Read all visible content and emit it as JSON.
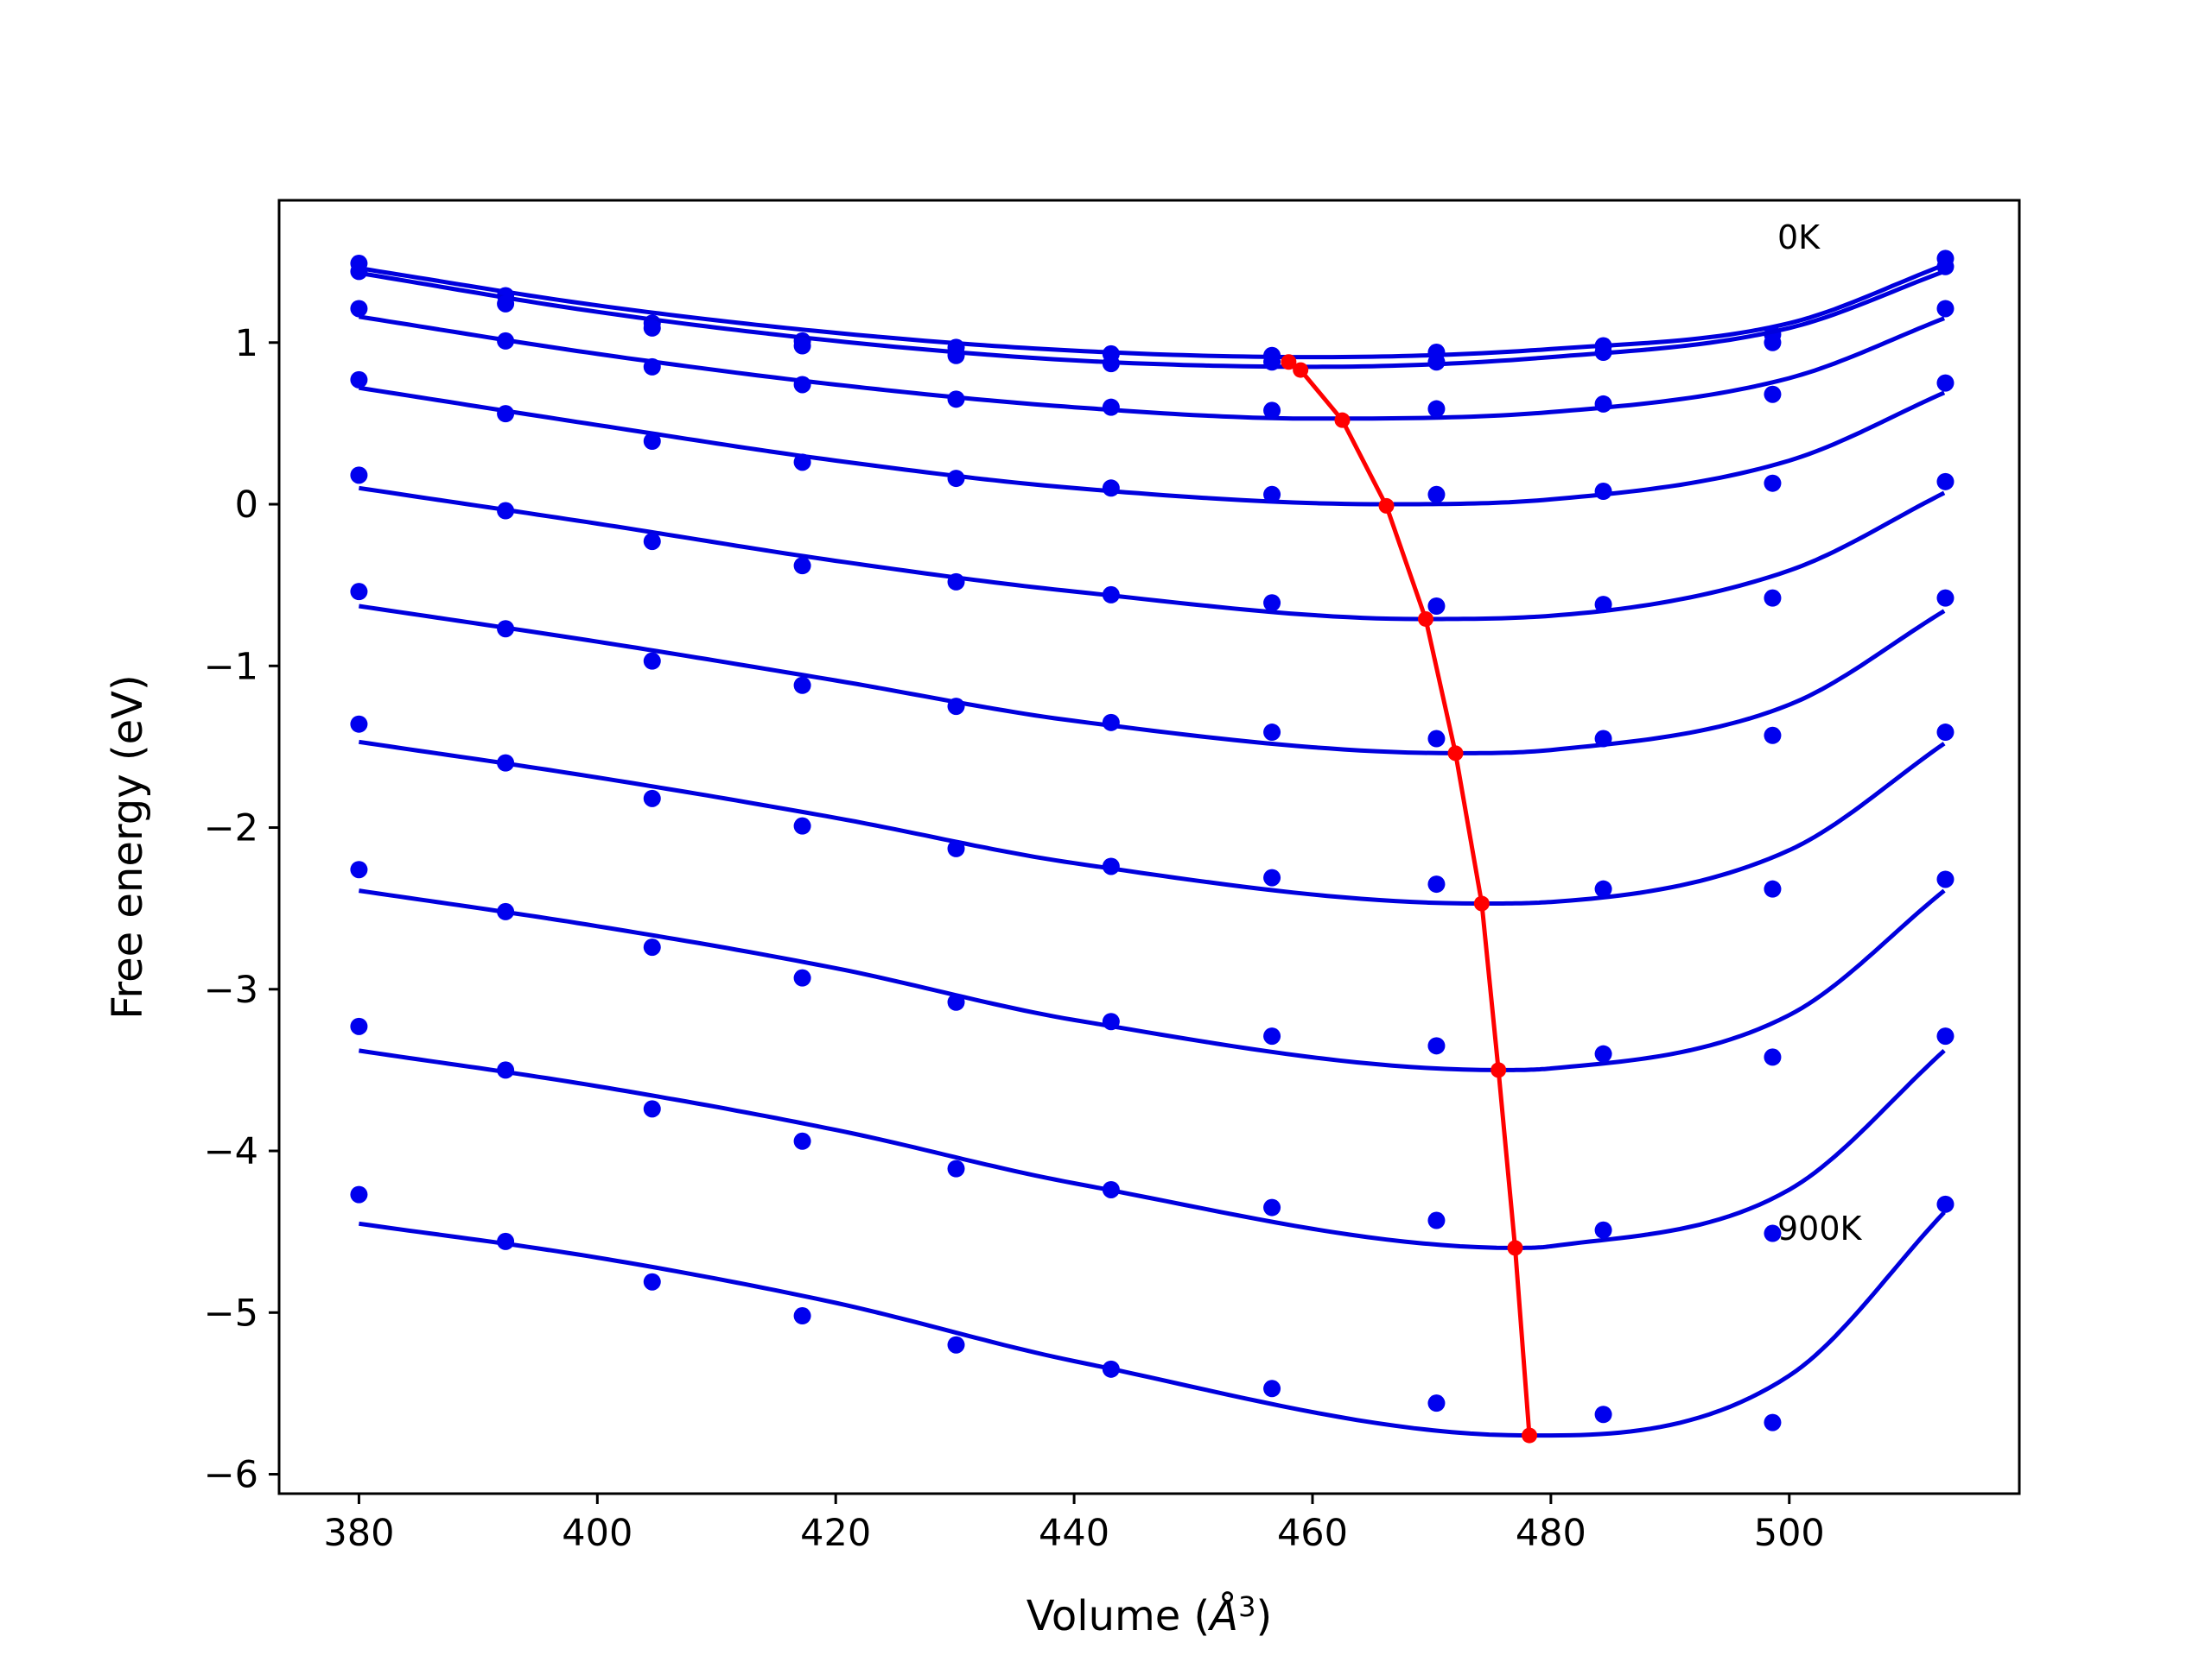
{
  "chart_data": {
    "type": "line",
    "title": "",
    "xlabel": "Volume (",
    "xlabel_symbol": "Å",
    "xlabel_power": "3",
    "xlabel_close": ")",
    "ylabel": "Free energy (eV)",
    "xlim": [
      373.3,
      519.3
    ],
    "ylim": [
      -6.12,
      1.88
    ],
    "xticks": [
      380,
      400,
      420,
      440,
      460,
      480,
      500
    ],
    "xtick_labels": [
      "380",
      "400",
      "420",
      "440",
      "460",
      "480",
      "500"
    ],
    "yticks": [
      1,
      0,
      -1,
      -2,
      -3,
      -4,
      -5,
      -6
    ],
    "ytick_labels": [
      "1",
      "0",
      "−1",
      "−2",
      "−3",
      "−4",
      "−5",
      "−6"
    ],
    "grid": false,
    "annotations": [
      {
        "text": "0K",
        "x": 499,
        "y": 1.58
      },
      {
        "text": "900K",
        "x": 499,
        "y": -4.55
      }
    ],
    "x": [
      380.0,
      392.3,
      404.6,
      417.2,
      430.1,
      443.1,
      456.6,
      470.4,
      484.4,
      498.6,
      513.1
    ],
    "series": [
      {
        "values": [
          1.49,
          1.29,
          1.12,
          1.01,
          0.97,
          0.93,
          0.92,
          0.94,
          0.98,
          1.05,
          1.52
        ],
        "fit": [
          [
            380,
            1.46
          ],
          [
            400,
            1.23
          ],
          [
            420,
            1.06
          ],
          [
            440,
            0.95
          ],
          [
            460,
            0.91
          ],
          [
            480,
            0.96
          ],
          [
            500,
            1.12
          ],
          [
            513,
            1.48
          ]
        ]
      },
      {
        "values": [
          1.44,
          1.24,
          1.09,
          0.98,
          0.92,
          0.87,
          0.88,
          0.88,
          0.94,
          1.0,
          1.47
        ],
        "fit": [
          [
            380,
            1.43
          ],
          [
            400,
            1.19
          ],
          [
            420,
            1.01
          ],
          [
            440,
            0.89
          ],
          [
            460,
            0.85
          ],
          [
            480,
            0.91
          ],
          [
            500,
            1.09
          ],
          [
            513,
            1.44
          ]
        ]
      },
      {
        "values": [
          1.21,
          1.01,
          0.85,
          0.74,
          0.65,
          0.6,
          0.58,
          0.59,
          0.62,
          0.68,
          1.21
        ],
        "fit": [
          [
            380,
            1.16
          ],
          [
            400,
            0.93
          ],
          [
            420,
            0.74
          ],
          [
            440,
            0.6
          ],
          [
            460,
            0.53
          ],
          [
            480,
            0.57
          ],
          [
            500,
            0.78
          ],
          [
            513,
            1.15
          ]
        ]
      },
      {
        "values": [
          0.77,
          0.56,
          0.39,
          0.26,
          0.16,
          0.1,
          0.06,
          0.06,
          0.08,
          0.13,
          0.75
        ],
        "fit": [
          [
            380,
            0.72
          ],
          [
            400,
            0.49
          ],
          [
            420,
            0.27
          ],
          [
            440,
            0.1
          ],
          [
            466,
            0.0
          ],
          [
            480,
            0.03
          ],
          [
            500,
            0.27
          ],
          [
            513,
            0.69
          ]
        ]
      },
      {
        "values": [
          0.18,
          -0.04,
          -0.23,
          -0.38,
          -0.48,
          -0.56,
          -0.61,
          -0.63,
          -0.62,
          -0.58,
          0.14
        ],
        "fit": [
          [
            380,
            0.1
          ],
          [
            400,
            -0.12
          ],
          [
            420,
            -0.35
          ],
          [
            440,
            -0.54
          ],
          [
            469,
            -0.71
          ],
          [
            480,
            -0.69
          ],
          [
            500,
            -0.41
          ],
          [
            513,
            0.07
          ]
        ]
      },
      {
        "values": [
          -0.54,
          -0.77,
          -0.97,
          -1.12,
          -1.25,
          -1.35,
          -1.41,
          -1.45,
          -1.45,
          -1.43,
          -0.58
        ],
        "fit": [
          [
            380,
            -0.63
          ],
          [
            400,
            -0.85
          ],
          [
            420,
            -1.09
          ],
          [
            440,
            -1.34
          ],
          [
            472,
            -1.54
          ],
          [
            480,
            -1.52
          ],
          [
            500,
            -1.24
          ],
          [
            513,
            -0.66
          ]
        ]
      },
      {
        "values": [
          -1.36,
          -1.6,
          -1.82,
          -1.99,
          -2.13,
          -2.24,
          -2.31,
          -2.35,
          -2.38,
          -2.38,
          -1.41
        ],
        "fit": [
          [
            380,
            -1.47
          ],
          [
            400,
            -1.69
          ],
          [
            420,
            -1.94
          ],
          [
            440,
            -2.22
          ],
          [
            474,
            -2.47
          ],
          [
            480,
            -2.46
          ],
          [
            500,
            -2.14
          ],
          [
            513,
            -1.48
          ]
        ]
      },
      {
        "values": [
          -2.26,
          -2.52,
          -2.74,
          -2.93,
          -3.08,
          -3.2,
          -3.29,
          -3.35,
          -3.4,
          -3.42,
          -2.32
        ],
        "fit": [
          [
            380,
            -2.39
          ],
          [
            400,
            -2.61
          ],
          [
            420,
            -2.87
          ],
          [
            440,
            -3.19
          ],
          [
            475.6,
            -3.5
          ],
          [
            480,
            -3.49
          ],
          [
            500,
            -3.16
          ],
          [
            513,
            -2.39
          ]
        ]
      },
      {
        "values": [
          -3.23,
          -3.5,
          -3.74,
          -3.94,
          -4.11,
          -4.24,
          -4.35,
          -4.43,
          -4.49,
          -4.51,
          -3.29
        ],
        "fit": [
          [
            380,
            -3.38
          ],
          [
            400,
            -3.6
          ],
          [
            420,
            -3.87
          ],
          [
            440,
            -4.2
          ],
          [
            477,
            -4.6
          ],
          [
            480,
            -4.59
          ],
          [
            500,
            -4.24
          ],
          [
            513,
            -3.38
          ]
        ]
      },
      {
        "values": [
          -4.27,
          -4.56,
          -4.81,
          -5.02,
          -5.2,
          -5.35,
          -5.47,
          -5.56,
          -5.63,
          -5.68,
          -4.33
        ],
        "fit": [
          [
            380,
            -4.45
          ],
          [
            400,
            -4.66
          ],
          [
            420,
            -4.94
          ],
          [
            440,
            -5.3
          ],
          [
            478,
            -5.76
          ],
          [
            480,
            -5.76
          ],
          [
            500,
            -5.39
          ],
          [
            513,
            -4.38
          ]
        ]
      }
    ],
    "minima": {
      "x": [
        458.0,
        459.0,
        462.5,
        466.2,
        469.5,
        472.0,
        474.2,
        475.6,
        477.0,
        478.2
      ],
      "y": [
        0.88,
        0.83,
        0.52,
        -0.01,
        -0.71,
        -1.54,
        -2.47,
        -3.5,
        -4.6,
        -5.76
      ]
    },
    "colors": {
      "fits": "#0000dd",
      "points": "#0000ee",
      "minima": "#ff0000",
      "axes": "#000000"
    }
  }
}
